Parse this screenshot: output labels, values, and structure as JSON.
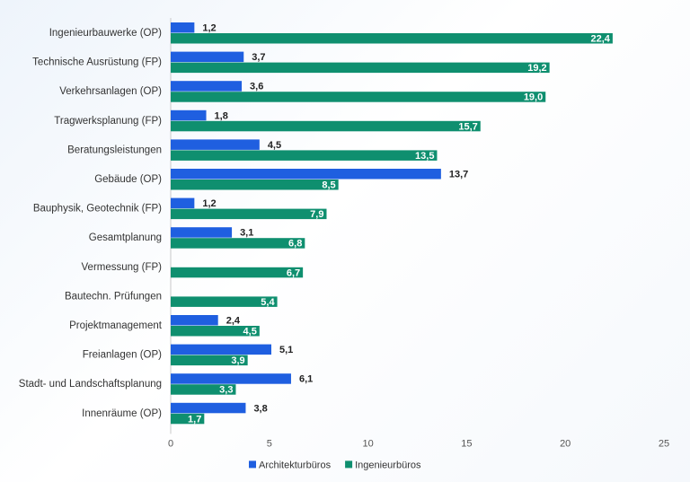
{
  "chart_data": {
    "type": "bar",
    "orientation": "horizontal",
    "categories": [
      "Ingenieurbauwerke (OP)",
      "Technische Ausrüstung (FP)",
      "Verkehrsanlagen (OP)",
      "Tragwerksplanung (FP)",
      "Beratungsleistungen",
      "Gebäude (OP)",
      "Bauphysik, Geotechnik (FP)",
      "Gesamtplanung",
      "Vermessung (FP)",
      "Bautechn. Prüfungen",
      "Projektmanagement",
      "Freianlagen (OP)",
      "Stadt- und Landschaftsplanung",
      "Innenräume (OP)"
    ],
    "series": [
      {
        "name": "Architekturbüros",
        "color": "#1f5fe0",
        "values": [
          1.2,
          3.7,
          3.6,
          1.8,
          4.5,
          13.7,
          1.2,
          3.1,
          null,
          null,
          2.4,
          5.1,
          6.1,
          3.8
        ],
        "labels": [
          "1,2",
          "3,7",
          "3,6",
          "1,8",
          "4,5",
          "13,7",
          "1,2",
          "3,1",
          "",
          "",
          "2,4",
          "5,1",
          "6,1",
          "3,8"
        ]
      },
      {
        "name": "Ingenieurbüros",
        "color": "#0f8f6f",
        "values": [
          22.4,
          19.2,
          19.0,
          15.7,
          13.5,
          8.5,
          7.9,
          6.8,
          6.7,
          5.4,
          4.5,
          3.9,
          3.3,
          1.7
        ],
        "labels": [
          "22,4",
          "19,2",
          "19,0",
          "15,7",
          "13,5",
          "8,5",
          "7,9",
          "6,8",
          "6,7",
          "5,4",
          "4,5",
          "3,9",
          "3,3",
          "1,7"
        ]
      }
    ],
    "xlim": [
      0,
      25
    ],
    "xticks": [
      0,
      5,
      10,
      15,
      20,
      25
    ],
    "xtick_labels": [
      "0",
      "5",
      "10",
      "15",
      "20",
      "25"
    ],
    "grid": false,
    "legend_position": "bottom-center",
    "title": "",
    "xlabel": "",
    "ylabel": ""
  }
}
